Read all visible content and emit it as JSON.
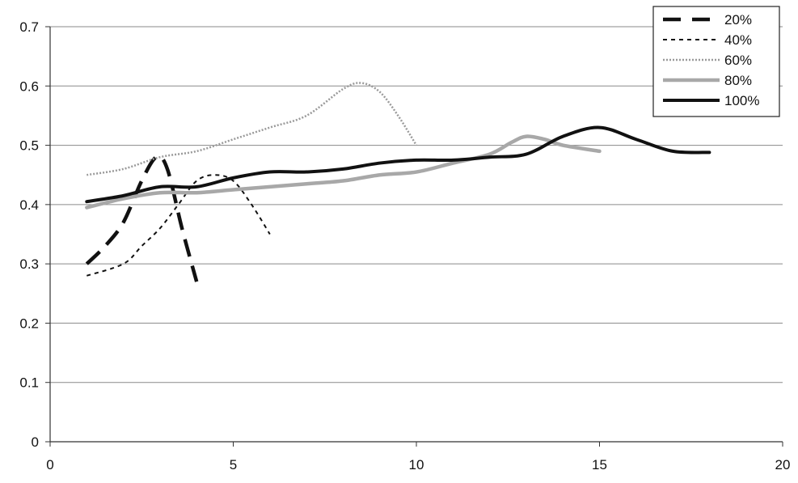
{
  "chart_data": {
    "type": "line",
    "title": "",
    "xlabel": "",
    "ylabel": "",
    "xlim": [
      0,
      20
    ],
    "ylim": [
      0,
      0.7
    ],
    "x_ticks": [
      0,
      5,
      10,
      15,
      20
    ],
    "y_ticks": [
      0,
      0.1,
      0.2,
      0.3,
      0.4,
      0.5,
      0.6,
      0.7
    ],
    "x_tick_labels": [
      "0",
      "5",
      "10",
      "15",
      "20"
    ],
    "y_tick_labels": [
      "0",
      "0.1",
      "0.2",
      "0.3",
      "0.4",
      "0.5",
      "0.6",
      "0.7"
    ],
    "grid": "horizontal",
    "legend_position": "top-right",
    "series": [
      {
        "name": "20%",
        "style": "long-dash",
        "color": "#111111",
        "x": [
          1,
          1.5,
          2,
          2.5,
          2.9,
          3.2,
          3.6,
          4
        ],
        "y": [
          0.3,
          0.33,
          0.37,
          0.44,
          0.48,
          0.46,
          0.36,
          0.27
        ]
      },
      {
        "name": "40%",
        "style": "short-dash",
        "color": "#111111",
        "x": [
          1,
          2,
          2.5,
          3,
          3.5,
          4,
          4.5,
          5,
          5.5,
          6
        ],
        "y": [
          0.28,
          0.3,
          0.33,
          0.36,
          0.4,
          0.44,
          0.45,
          0.44,
          0.4,
          0.35
        ]
      },
      {
        "name": "60%",
        "style": "dotted",
        "color": "#9a9a9a",
        "x": [
          1,
          2,
          3,
          4,
          5,
          6,
          7,
          8,
          8.5,
          9,
          9.5,
          10
        ],
        "y": [
          0.45,
          0.46,
          0.48,
          0.49,
          0.51,
          0.53,
          0.55,
          0.595,
          0.605,
          0.59,
          0.55,
          0.5
        ]
      },
      {
        "name": "80%",
        "style": "solid",
        "color": "#a8a8a8",
        "x": [
          1,
          2,
          3,
          4,
          5,
          6,
          7,
          8,
          9,
          10,
          11,
          12,
          12.6,
          13,
          13.5,
          14,
          15
        ],
        "y": [
          0.395,
          0.41,
          0.42,
          0.42,
          0.425,
          0.43,
          0.435,
          0.44,
          0.45,
          0.455,
          0.47,
          0.485,
          0.505,
          0.515,
          0.51,
          0.5,
          0.49
        ]
      },
      {
        "name": "100%",
        "style": "solid",
        "color": "#111111",
        "x": [
          1,
          2,
          3,
          4,
          5,
          6,
          7,
          8,
          9,
          10,
          11,
          12,
          13,
          14,
          15,
          16,
          17,
          18
        ],
        "y": [
          0.405,
          0.415,
          0.43,
          0.43,
          0.445,
          0.455,
          0.455,
          0.46,
          0.47,
          0.475,
          0.475,
          0.48,
          0.485,
          0.515,
          0.53,
          0.51,
          0.49,
          0.488
        ]
      }
    ]
  }
}
